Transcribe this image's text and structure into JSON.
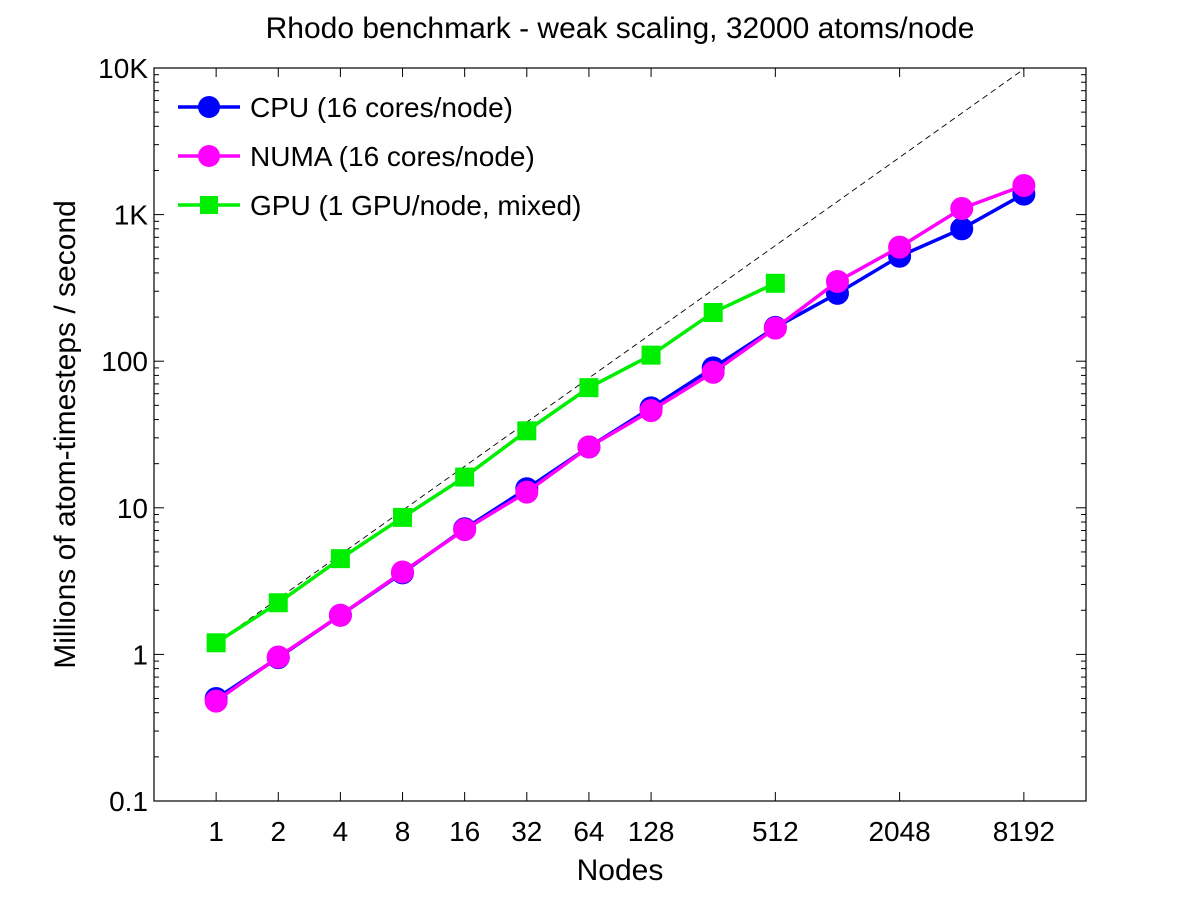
{
  "chart_data": {
    "type": "line",
    "title": "Rhodo benchmark - weak scaling, 32000 atoms/node",
    "xlabel": "Nodes",
    "ylabel": "Millions of atom-timesteps / second",
    "x_scale": "log2",
    "y_scale": "log10",
    "xlim": [
      0.5,
      16384
    ],
    "ylim": [
      0.1,
      10000
    ],
    "x_ticks": [
      1,
      2,
      4,
      8,
      16,
      32,
      64,
      128,
      512,
      2048,
      8192
    ],
    "x_tick_labels": [
      "1",
      "2",
      "4",
      "8",
      "16",
      "32",
      "64",
      "128",
      "512",
      "2048",
      "8192"
    ],
    "y_ticks": [
      0.1,
      1,
      10,
      100,
      1000,
      10000
    ],
    "y_tick_labels": [
      "0.1",
      "1",
      "10",
      "100",
      "1K",
      "10K"
    ],
    "grid": false,
    "legend_position": "top-left",
    "series": [
      {
        "name": "CPU (16 cores/node)",
        "color": "#0000ff",
        "marker": "circle",
        "x": [
          1,
          2,
          4,
          8,
          16,
          32,
          64,
          128,
          256,
          512,
          1024,
          2048,
          4096,
          8192
        ],
        "y": [
          0.5,
          0.95,
          1.85,
          3.6,
          7.2,
          13.5,
          26,
          48,
          90,
          170,
          290,
          520,
          800,
          1380
        ]
      },
      {
        "name": "NUMA (16 cores/node)",
        "color": "#ff00ff",
        "marker": "circle",
        "x": [
          1,
          2,
          4,
          8,
          16,
          32,
          64,
          128,
          256,
          512,
          1024,
          2048,
          4096,
          8192
        ],
        "y": [
          0.48,
          0.96,
          1.85,
          3.65,
          7.1,
          12.8,
          26,
          46,
          84,
          168,
          350,
          600,
          1100,
          1580
        ]
      },
      {
        "name": "GPU (1 GPU/node, mixed)",
        "color": "#00ee00",
        "marker": "square",
        "x": [
          1,
          2,
          4,
          8,
          16,
          32,
          64,
          128,
          256,
          512
        ],
        "y": [
          1.2,
          2.25,
          4.5,
          8.6,
          16.2,
          33.5,
          66,
          110,
          215,
          340
        ]
      }
    ],
    "reference_line": {
      "style": "dashed",
      "color": "#000000",
      "x": [
        1,
        8192
      ],
      "y": [
        1.2,
        9830
      ]
    }
  }
}
